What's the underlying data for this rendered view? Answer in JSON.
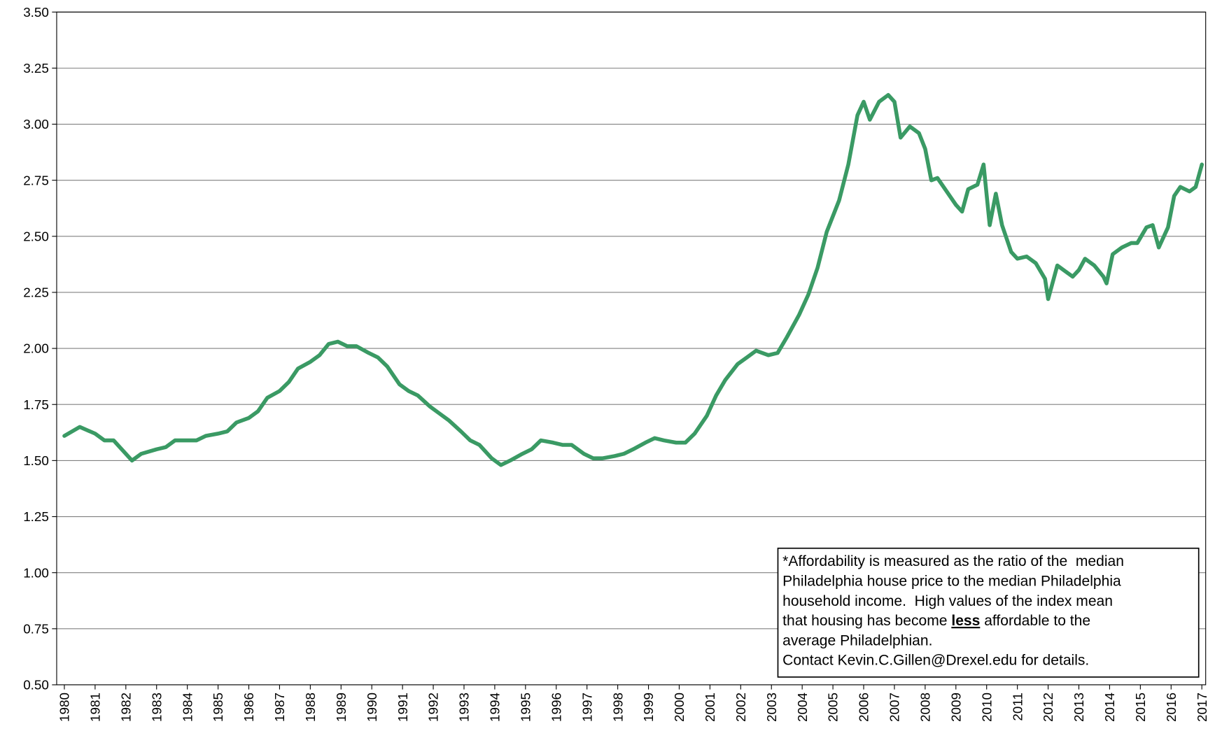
{
  "chart_data": {
    "type": "line",
    "x": [
      1980.0,
      1980.5,
      1981.0,
      1981.3,
      1981.6,
      1982.0,
      1982.2,
      1982.5,
      1983.0,
      1983.3,
      1983.6,
      1984.0,
      1984.3,
      1984.6,
      1985.0,
      1985.3,
      1985.6,
      1986.0,
      1986.3,
      1986.6,
      1987.0,
      1987.3,
      1987.6,
      1988.0,
      1988.3,
      1988.6,
      1988.9,
      1989.2,
      1989.5,
      1989.9,
      1990.2,
      1990.5,
      1990.9,
      1991.2,
      1991.5,
      1991.9,
      1992.2,
      1992.5,
      1992.9,
      1993.2,
      1993.5,
      1993.9,
      1994.2,
      1994.5,
      1994.9,
      1995.2,
      1995.5,
      1995.9,
      1996.2,
      1996.5,
      1996.9,
      1997.2,
      1997.5,
      1997.9,
      1998.2,
      1998.5,
      1998.9,
      1999.2,
      1999.5,
      1999.9,
      2000.2,
      2000.5,
      2000.9,
      2001.2,
      2001.5,
      2001.9,
      2002.2,
      2002.5,
      2002.9,
      2003.2,
      2003.5,
      2003.9,
      2004.2,
      2004.5,
      2004.8,
      2005.2,
      2005.5,
      2005.8,
      2006.0,
      2006.2,
      2006.5,
      2006.8,
      2007.0,
      2007.2,
      2007.5,
      2007.8,
      2008.0,
      2008.2,
      2008.4,
      2008.7,
      2009.0,
      2009.2,
      2009.4,
      2009.7,
      2009.9,
      2010.1,
      2010.3,
      2010.5,
      2010.8,
      2011.0,
      2011.3,
      2011.6,
      2011.9,
      2012.0,
      2012.3,
      2012.5,
      2012.8,
      2013.0,
      2013.2,
      2013.5,
      2013.8,
      2013.9,
      2014.1,
      2014.4,
      2014.7,
      2014.9,
      2015.2,
      2015.4,
      2015.6,
      2015.9,
      2016.1,
      2016.3,
      2016.6,
      2016.8,
      2017.0
    ],
    "series": [
      {
        "color": "#3a9a64",
        "values": [
          1.61,
          1.65,
          1.62,
          1.59,
          1.59,
          1.53,
          1.5,
          1.53,
          1.55,
          1.56,
          1.59,
          1.59,
          1.59,
          1.61,
          1.62,
          1.63,
          1.67,
          1.69,
          1.72,
          1.78,
          1.81,
          1.85,
          1.91,
          1.94,
          1.97,
          2.02,
          2.03,
          2.01,
          2.01,
          1.98,
          1.96,
          1.92,
          1.84,
          1.81,
          1.79,
          1.74,
          1.71,
          1.68,
          1.63,
          1.59,
          1.57,
          1.51,
          1.48,
          1.5,
          1.53,
          1.55,
          1.59,
          1.58,
          1.57,
          1.57,
          1.53,
          1.51,
          1.51,
          1.52,
          1.53,
          1.55,
          1.58,
          1.6,
          1.59,
          1.58,
          1.58,
          1.62,
          1.7,
          1.79,
          1.86,
          1.93,
          1.96,
          1.99,
          1.97,
          1.98,
          2.05,
          2.15,
          2.24,
          2.36,
          2.52,
          2.66,
          2.82,
          3.04,
          3.1,
          3.02,
          3.1,
          3.13,
          3.1,
          2.94,
          2.99,
          2.96,
          2.89,
          2.75,
          2.76,
          2.7,
          2.64,
          2.61,
          2.71,
          2.73,
          2.82,
          2.55,
          2.69,
          2.55,
          2.43,
          2.4,
          2.41,
          2.38,
          2.31,
          2.22,
          2.37,
          2.35,
          2.32,
          2.35,
          2.4,
          2.37,
          2.32,
          2.29,
          2.42,
          2.45,
          2.47,
          2.47,
          2.54,
          2.55,
          2.45,
          2.54,
          2.68,
          2.72,
          2.7,
          2.72,
          2.82
        ]
      }
    ],
    "xlim": [
      1979.75,
      2017.125
    ],
    "xticks": [
      1980,
      1981,
      1982,
      1983,
      1984,
      1985,
      1986,
      1987,
      1988,
      1989,
      1990,
      1991,
      1992,
      1993,
      1994,
      1995,
      1996,
      1997,
      1998,
      1999,
      2000,
      2001,
      2002,
      2003,
      2004,
      2005,
      2006,
      2007,
      2008,
      2009,
      2010,
      2011,
      2012,
      2013,
      2014,
      2015,
      2016,
      2017
    ],
    "ylim": [
      0.5,
      3.5
    ],
    "yticks": [
      {
        "value": 0.5,
        "label": "0.50"
      },
      {
        "value": 0.75,
        "label": "0.75"
      },
      {
        "value": 1,
        "label": "1.00"
      },
      {
        "value": 1.25,
        "label": "1.25"
      },
      {
        "value": 1.5,
        "label": "1.50"
      },
      {
        "value": 1.75,
        "label": "1.75"
      },
      {
        "value": 2,
        "label": "2.00"
      },
      {
        "value": 2.25,
        "label": "2.25"
      },
      {
        "value": 2.5,
        "label": "2.50"
      },
      {
        "value": 2.75,
        "label": "2.75"
      },
      {
        "value": 3,
        "label": "3.00"
      },
      {
        "value": 3.25,
        "label": "3.25"
      },
      {
        "value": 3.5,
        "label": "3.50"
      }
    ],
    "grid": true,
    "annotation": [
      "*Affordability is measured as the ratio of the  median",
      "Philadelphia house price to the median Philadelphia",
      "household income.  High values of the index mean",
      {
        "before": "that housing has become ",
        "emphasis": "less",
        "after": " affordable to the"
      },
      "average Philadelphian.",
      "Contact Kevin.C.Gillen@Drexel.edu for details."
    ]
  }
}
